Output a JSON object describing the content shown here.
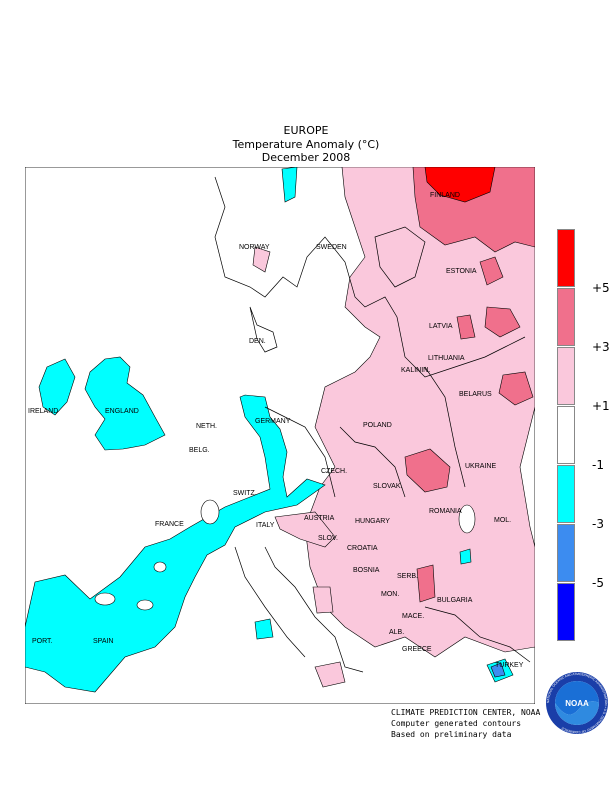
{
  "header": {
    "region": "EUROPE",
    "variable": "Temperature Anomaly (°C)",
    "period": "December 2008"
  },
  "map_labels": [
    {
      "text": "FINLAND"
    },
    {
      "text": "NORWAY"
    },
    {
      "text": "SWEDEN"
    },
    {
      "text": "ESTONIA"
    },
    {
      "text": "LATVIA"
    },
    {
      "text": "LITHUANIA"
    },
    {
      "text": "KALININ."
    },
    {
      "text": "BELARUS"
    },
    {
      "text": "DEN."
    },
    {
      "text": "IRELAND"
    },
    {
      "text": "ENGLAND"
    },
    {
      "text": "NETH."
    },
    {
      "text": "BELG."
    },
    {
      "text": "GERMANY"
    },
    {
      "text": "POLAND"
    },
    {
      "text": "UKRAINE"
    },
    {
      "text": "CZECH."
    },
    {
      "text": "SLOVAK."
    },
    {
      "text": "FRANCE"
    },
    {
      "text": "SWITZ."
    },
    {
      "text": "AUSTRIA"
    },
    {
      "text": "HUNGARY"
    },
    {
      "text": "MOL."
    },
    {
      "text": "ROMANIA"
    },
    {
      "text": "ITALY"
    },
    {
      "text": "SLOV."
    },
    {
      "text": "CROATIA"
    },
    {
      "text": "BOSNIA"
    },
    {
      "text": "SERB."
    },
    {
      "text": "MON."
    },
    {
      "text": "BULGARIA"
    },
    {
      "text": "MACE."
    },
    {
      "text": "ALB."
    },
    {
      "text": "GREECE"
    },
    {
      "text": "TURKEY"
    },
    {
      "text": "PORT."
    },
    {
      "text": "SPAIN"
    }
  ],
  "legend": {
    "colors": [
      "#ff0000",
      "#f0708c",
      "#fac8dc",
      "#ffffff",
      "#00ffff",
      "#3c8cf0",
      "#0000ff"
    ],
    "ticks": [
      "+5",
      "+3",
      "+1",
      "-1",
      "-3",
      "-5"
    ]
  },
  "credits": {
    "line1": "CLIMATE PREDICTION CENTER, NOAA",
    "line2": "Computer generated contours",
    "line3": "Based on preliminary data"
  },
  "logo": {
    "text": "NOAA",
    "ring_text": "NATIONAL OCEANIC AND ATMOSPHERIC ADMINISTRATION • U.S. DEPARTMENT OF COMMERCE",
    "icon": "noaa-logo-icon"
  }
}
